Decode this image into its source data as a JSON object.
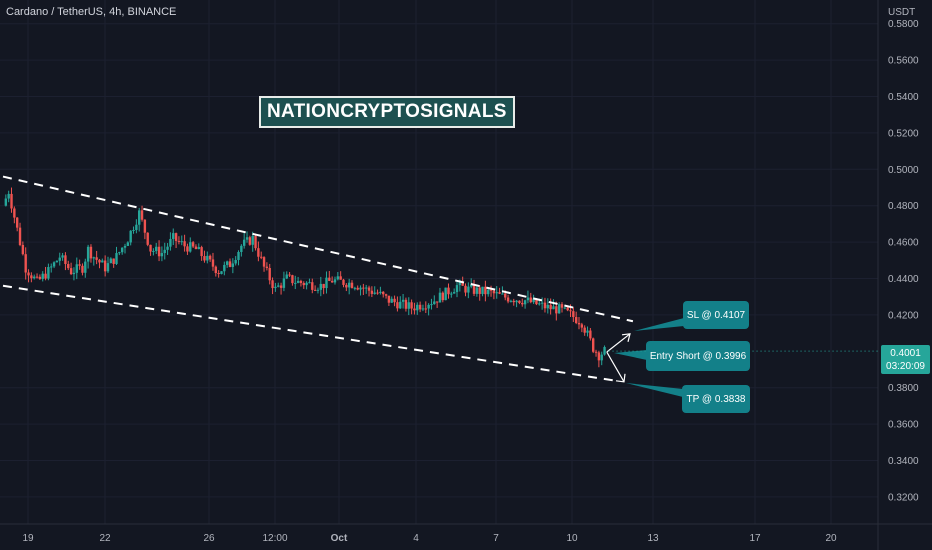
{
  "header": {
    "title": "Cardano / TetherUS, 4h, BINANCE"
  },
  "watermark": "NATIONCRYPTOSIGNALS",
  "annotations": {
    "sl": "SL @ 0.4107",
    "entry": "Entry Short @ 0.3996",
    "tp": "TP @ 0.3838"
  },
  "price_tag": {
    "price": "0.4001",
    "countdown": "03:20:09"
  },
  "colors": {
    "background": "#131722",
    "up": "#26a69a",
    "down": "#ef5350",
    "callout": "#138089",
    "text": "#b2b5be"
  },
  "chart_data": {
    "type": "candlestick",
    "title": "Cardano / TetherUS, 4h, BINANCE",
    "y_axis": {
      "unit_label": "USDT",
      "ticks": [
        "0.5800",
        "0.5600",
        "0.5400",
        "0.5200",
        "0.5000",
        "0.4800",
        "0.4600",
        "0.4400",
        "0.4200",
        "0.3800",
        "0.3600",
        "0.3400",
        "0.3200"
      ],
      "range": [
        0.31,
        0.582
      ]
    },
    "x_axis": {
      "tick_labels": [
        "19",
        "22",
        "26",
        "12:00",
        "Oct",
        "4",
        "7",
        "10",
        "13",
        "17",
        "20"
      ]
    },
    "close_path": [
      [
        0,
        0.48
      ],
      [
        0.5,
        0.488
      ],
      [
        1,
        0.474
      ],
      [
        2.0,
        0.446
      ],
      [
        3,
        0.438
      ],
      [
        4,
        0.444
      ],
      [
        5,
        0.452
      ],
      [
        6,
        0.444
      ],
      [
        7,
        0.446
      ],
      [
        7.5,
        0.456
      ],
      [
        8,
        0.452
      ],
      [
        9,
        0.446
      ],
      [
        10,
        0.452
      ],
      [
        11,
        0.462
      ],
      [
        12,
        0.476
      ],
      [
        13,
        0.456
      ],
      [
        14,
        0.454
      ],
      [
        15,
        0.462
      ],
      [
        16,
        0.458
      ],
      [
        17,
        0.456
      ],
      [
        18,
        0.45
      ],
      [
        19,
        0.444
      ],
      [
        20,
        0.448
      ],
      [
        21,
        0.458
      ],
      [
        22,
        0.462
      ],
      [
        23,
        0.446
      ],
      [
        24,
        0.434
      ],
      [
        25,
        0.44
      ],
      [
        26,
        0.438
      ],
      [
        27,
        0.437
      ],
      [
        28,
        0.436
      ],
      [
        29,
        0.439
      ],
      [
        30,
        0.438
      ],
      [
        31,
        0.437
      ],
      [
        32,
        0.434
      ],
      [
        33,
        0.432
      ],
      [
        34,
        0.428
      ],
      [
        35,
        0.426
      ],
      [
        36,
        0.424
      ],
      [
        37,
        0.426
      ],
      [
        38,
        0.428
      ],
      [
        39,
        0.432
      ],
      [
        40,
        0.436
      ],
      [
        41,
        0.434
      ],
      [
        42,
        0.433
      ],
      [
        43,
        0.432
      ],
      [
        44,
        0.43
      ],
      [
        45,
        0.429
      ],
      [
        46,
        0.428
      ],
      [
        47,
        0.426
      ],
      [
        48,
        0.424
      ],
      [
        49,
        0.423
      ],
      [
        50,
        0.42
      ],
      [
        51,
        0.416
      ],
      [
        52,
        0.402
      ],
      [
        52.5,
        0.398
      ],
      [
        53,
        0.4001
      ]
    ],
    "trend_channel": {
      "upper": [
        [
          0,
          0.496
        ],
        [
          55.5,
          0.4165
        ]
      ],
      "lower": [
        [
          0,
          0.436
        ],
        [
          54,
          0.3838
        ]
      ]
    },
    "trade": {
      "entry": 0.3996,
      "stop_loss": 0.4107,
      "take_profit": 0.3838,
      "last_price": 0.4001
    }
  }
}
